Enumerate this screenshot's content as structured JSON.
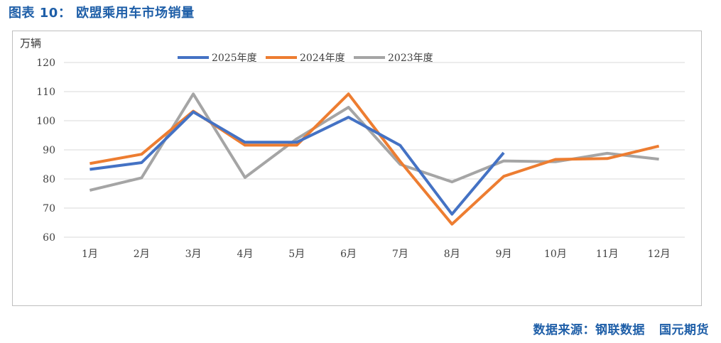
{
  "figure": {
    "title": "图表 10：  欧盟乘用车市场销量",
    "source_label": "数据来源：钢联数据",
    "brand": "国元期货"
  },
  "chart_data": {
    "type": "line",
    "ylabel": "万辆",
    "ylim": [
      60,
      120
    ],
    "yticks": [
      60,
      70,
      80,
      90,
      100,
      110,
      120
    ],
    "grid": true,
    "legend_position": "top-center",
    "categories": [
      "1月",
      "2月",
      "3月",
      "4月",
      "5月",
      "6月",
      "7月",
      "8月",
      "9月",
      "10月",
      "11月",
      "12月"
    ],
    "series": [
      {
        "name": "2025年度",
        "color": "#4472c4",
        "values": [
          83.3,
          85.6,
          103.0,
          92.6,
          92.6,
          101.2,
          91.5,
          67.9,
          89.0,
          null,
          null,
          null
        ]
      },
      {
        "name": "2024年度",
        "color": "#ed7d31",
        "values": [
          85.3,
          88.5,
          103.3,
          91.6,
          91.6,
          109.2,
          86.0,
          64.5,
          80.9,
          86.7,
          87.0,
          91.3
        ]
      },
      {
        "name": "2023年度",
        "color": "#a5a5a5",
        "values": [
          76.1,
          80.4,
          109.2,
          80.5,
          93.8,
          104.6,
          85.0,
          79.0,
          86.2,
          85.9,
          88.8,
          86.8
        ]
      }
    ]
  }
}
